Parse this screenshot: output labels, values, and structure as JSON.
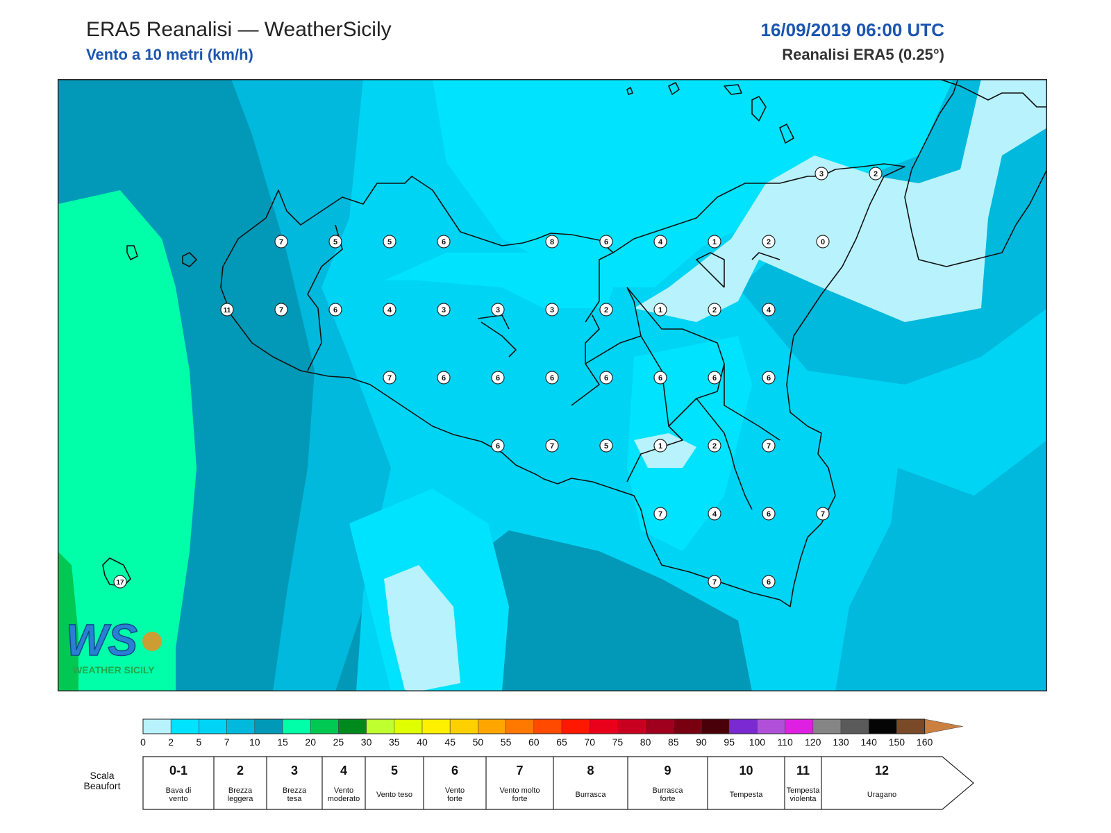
{
  "header": {
    "title": "ERA5 Reanalisi — WeatherSicily",
    "subtitle": "Vento a 10 metri (km/h)",
    "datetime": "16/09/2019 06:00 UTC",
    "model": "Reanalisi ERA5 (0.25°)"
  },
  "map": {
    "logo": {
      "text": "WS",
      "brand": "WEATHER SICILY",
      "colors": [
        "#2a7fd4",
        "#f08c1e",
        "#1fa84a"
      ]
    },
    "fill_colors": {
      "very_light": "#b8f2fd",
      "bright": "#00e3ff",
      "light": "#00d4f5",
      "mid": "#00b9dd",
      "dark": "#0299b8",
      "green": "#00ffa8",
      "deep_green": "#00c853"
    },
    "station_values": [
      {
        "id": "s1",
        "v": "7"
      },
      {
        "id": "s2",
        "v": "5"
      },
      {
        "id": "s3",
        "v": "5"
      },
      {
        "id": "s4",
        "v": "6"
      },
      {
        "id": "s5",
        "v": "8"
      },
      {
        "id": "s6",
        "v": "6"
      },
      {
        "id": "s7",
        "v": "4"
      },
      {
        "id": "s8",
        "v": "1"
      },
      {
        "id": "s9",
        "v": "2"
      },
      {
        "id": "s10",
        "v": "0"
      },
      {
        "id": "s11",
        "v": "3"
      },
      {
        "id": "s12",
        "v": "2"
      },
      {
        "id": "s13",
        "v": "11"
      },
      {
        "id": "s14",
        "v": "7"
      },
      {
        "id": "s15",
        "v": "6"
      },
      {
        "id": "s16",
        "v": "4"
      },
      {
        "id": "s17",
        "v": "3"
      },
      {
        "id": "s18",
        "v": "3"
      },
      {
        "id": "s19",
        "v": "3"
      },
      {
        "id": "s20",
        "v": "2"
      },
      {
        "id": "s21",
        "v": "1"
      },
      {
        "id": "s22",
        "v": "2"
      },
      {
        "id": "s23",
        "v": "4"
      },
      {
        "id": "s24",
        "v": "7"
      },
      {
        "id": "s25",
        "v": "6"
      },
      {
        "id": "s26",
        "v": "6"
      },
      {
        "id": "s27",
        "v": "6"
      },
      {
        "id": "s28",
        "v": "6"
      },
      {
        "id": "s29",
        "v": "6"
      },
      {
        "id": "s30",
        "v": "6"
      },
      {
        "id": "s31",
        "v": "6"
      },
      {
        "id": "s32",
        "v": "6"
      },
      {
        "id": "s33",
        "v": "7"
      },
      {
        "id": "s34",
        "v": "5"
      },
      {
        "id": "s35",
        "v": "1"
      },
      {
        "id": "s36",
        "v": "2"
      },
      {
        "id": "s37",
        "v": "7"
      },
      {
        "id": "s38",
        "v": "7"
      },
      {
        "id": "s39",
        "v": "4"
      },
      {
        "id": "s40",
        "v": "6"
      },
      {
        "id": "s41",
        "v": "7"
      },
      {
        "id": "s42",
        "v": "7"
      },
      {
        "id": "s43",
        "v": "6"
      },
      {
        "id": "s44",
        "v": "17"
      }
    ]
  },
  "colorbar": {
    "ticks": [
      "0",
      "2",
      "5",
      "7",
      "10",
      "15",
      "20",
      "25",
      "30",
      "35",
      "40",
      "45",
      "50",
      "55",
      "60",
      "65",
      "70",
      "75",
      "80",
      "85",
      "90",
      "95",
      "100",
      "110",
      "120",
      "130",
      "140",
      "150",
      "160"
    ],
    "colors": [
      "#b8f2fd",
      "#00e3ff",
      "#00d4f5",
      "#00b9dd",
      "#0299b8",
      "#00ffa8",
      "#00c853",
      "#008a1e",
      "#c0ff30",
      "#e0ff00",
      "#fff000",
      "#ffd000",
      "#ffa500",
      "#ff7800",
      "#ff4a00",
      "#ff1800",
      "#e8001a",
      "#c80020",
      "#a0001e",
      "#780010",
      "#4a0008",
      "#7a2ad0",
      "#b050d8",
      "#e020e0",
      "#858585",
      "#5a5a5a",
      "#050505",
      "#7a4a28",
      "#cc8040"
    ],
    "arrow_color": "#cc8040"
  },
  "beaufort": {
    "label_line1": "Scala",
    "label_line2": "Beaufort",
    "cells": [
      {
        "num": "0-1",
        "l1": "Bava di",
        "l2": "vento"
      },
      {
        "num": "2",
        "l1": "Brezza",
        "l2": "leggera"
      },
      {
        "num": "3",
        "l1": "Brezza",
        "l2": "tesa"
      },
      {
        "num": "4",
        "l1": "Vento",
        "l2": "moderato"
      },
      {
        "num": "5",
        "l1": "Vento teso",
        "l2": ""
      },
      {
        "num": "6",
        "l1": "Vento",
        "l2": "forte"
      },
      {
        "num": "7",
        "l1": "Vento molto",
        "l2": "forte"
      },
      {
        "num": "8",
        "l1": "Burrasca",
        "l2": ""
      },
      {
        "num": "9",
        "l1": "Burrasca",
        "l2": "forte"
      },
      {
        "num": "10",
        "l1": "Tempesta",
        "l2": ""
      },
      {
        "num": "11",
        "l1": "Tempesta",
        "l2": "violenta"
      },
      {
        "num": "12",
        "l1": "Uragano",
        "l2": ""
      }
    ]
  }
}
